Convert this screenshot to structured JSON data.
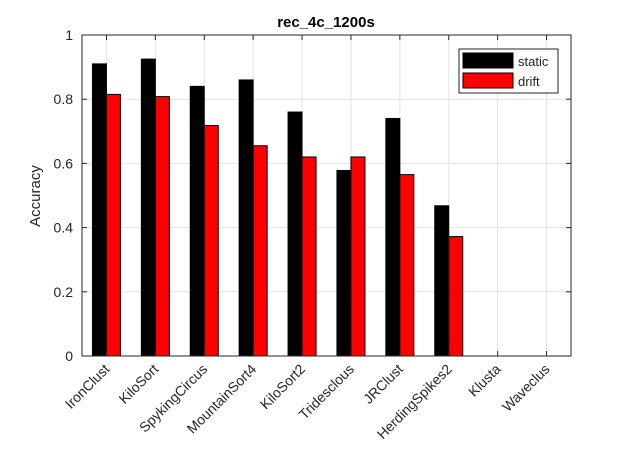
{
  "chart_data": {
    "type": "bar",
    "title": "rec_4c_1200s",
    "xlabel": "",
    "ylabel": "Accuracy",
    "ylim": [
      0,
      1
    ],
    "yticks": [
      "0",
      "0.2",
      "0.4",
      "0.6",
      "0.8",
      "1"
    ],
    "grid": true,
    "legend_position": "top-right",
    "categories": [
      "IronClust",
      "KiloSort",
      "SpykingCircus",
      "MountainSort4",
      "KiloSort2",
      "Tridesclous",
      "JRClust",
      "HerdingSpikes2",
      "Klusta",
      "Waveclus"
    ],
    "series": [
      {
        "name": "static",
        "color": "#000000",
        "values": [
          0.91,
          0.925,
          0.84,
          0.86,
          0.76,
          0.578,
          0.74,
          0.468,
          null,
          null
        ]
      },
      {
        "name": "drift",
        "color": "#ff0000",
        "values": [
          0.815,
          0.808,
          0.718,
          0.655,
          0.62,
          0.62,
          0.565,
          0.372,
          null,
          null
        ]
      }
    ]
  }
}
